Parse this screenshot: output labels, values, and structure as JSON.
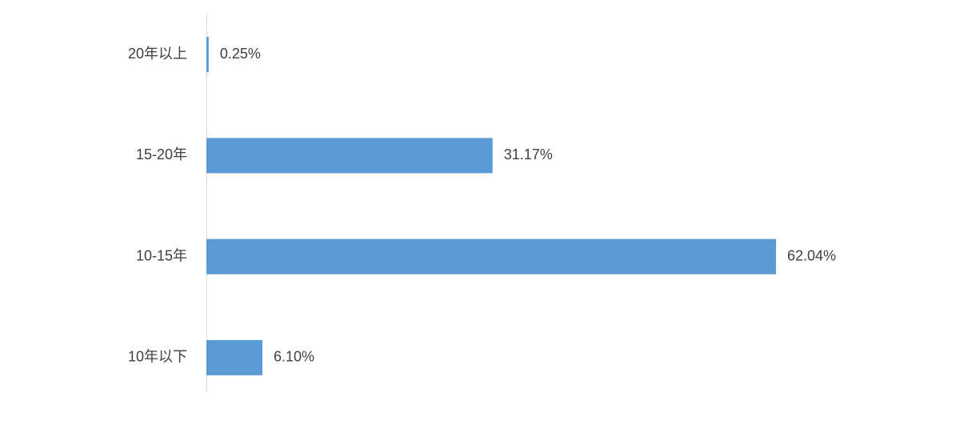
{
  "chart_data": {
    "type": "bar",
    "orientation": "horizontal",
    "categories": [
      "20年以上",
      "15-20年",
      "10-15年",
      "10年以下"
    ],
    "values": [
      0.25,
      31.17,
      62.04,
      6.1
    ],
    "value_labels": [
      "0.25%",
      "31.17%",
      "62.04%",
      "6.10%"
    ],
    "color": "#5b9bd5"
  }
}
